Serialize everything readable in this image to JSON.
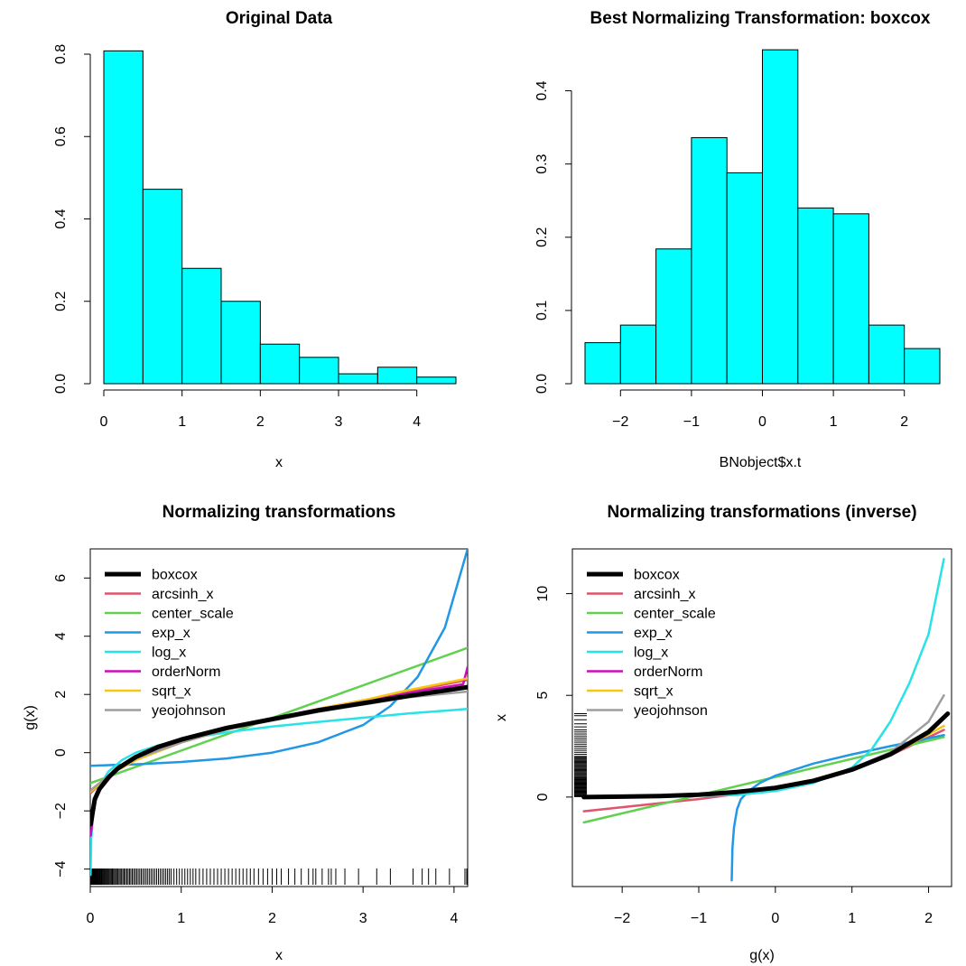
{
  "chart_data": [
    {
      "type": "histogram",
      "title": "Original Data",
      "xlabel": "x",
      "ylabel": "",
      "bar_color": "#00FFFF",
      "bins": [
        [
          0,
          0.5
        ],
        [
          0.5,
          1
        ],
        [
          1,
          1.5
        ],
        [
          1.5,
          2
        ],
        [
          2,
          2.5
        ],
        [
          2.5,
          3
        ],
        [
          3,
          3.5
        ],
        [
          3.5,
          4
        ],
        [
          4,
          4.5
        ]
      ],
      "values": [
        0.808,
        0.472,
        0.28,
        0.2,
        0.096,
        0.064,
        0.024,
        0.04,
        0.016
      ],
      "xlim": [
        0,
        4.5
      ],
      "ylim": [
        0,
        0.8
      ],
      "xticks": [
        0,
        1,
        2,
        3,
        4
      ],
      "xtick_labels": [
        "0",
        "1",
        "2",
        "3",
        "4"
      ],
      "yticks": [
        0,
        0.2,
        0.4,
        0.6,
        0.8
      ],
      "ytick_labels": [
        "0.0",
        "0.2",
        "0.4",
        "0.6",
        "0.8"
      ]
    },
    {
      "type": "histogram",
      "title": "Best Normalizing Transformation: boxcox",
      "xlabel": "BNobject$x.t",
      "ylabel": "",
      "bar_color": "#00FFFF",
      "bins": [
        [
          -2.5,
          -2
        ],
        [
          -2,
          -1.5
        ],
        [
          -1.5,
          -1
        ],
        [
          -1,
          -0.5
        ],
        [
          -0.5,
          0
        ],
        [
          0,
          0.5
        ],
        [
          0.5,
          1
        ],
        [
          1,
          1.5
        ],
        [
          1.5,
          2
        ],
        [
          2,
          2.5
        ]
      ],
      "values": [
        0.056,
        0.08,
        0.184,
        0.336,
        0.288,
        0.456,
        0.24,
        0.232,
        0.08,
        0.048
      ],
      "xlim": [
        -2.5,
        2.5
      ],
      "ylim": [
        0,
        0.45
      ],
      "xticks": [
        -2,
        -1,
        0,
        1,
        2
      ],
      "xtick_labels": [
        "−2",
        "−1",
        "0",
        "1",
        "2"
      ],
      "yticks": [
        0,
        0.1,
        0.2,
        0.3,
        0.4
      ],
      "ytick_labels": [
        "0.0",
        "0.1",
        "0.2",
        "0.3",
        "0.4"
      ]
    },
    {
      "type": "line",
      "title": "Normalizing transformations",
      "xlabel": "x",
      "ylabel": "g(x)",
      "xlim": [
        0,
        4.15
      ],
      "ylim": [
        -4.6,
        7.0
      ],
      "xticks": [
        0,
        1,
        2,
        3,
        4
      ],
      "xtick_labels": [
        "0",
        "1",
        "2",
        "3",
        "4"
      ],
      "yticks": [
        -4,
        -2,
        0,
        2,
        4,
        6
      ],
      "ytick_labels": [
        "−4",
        "−2",
        "0",
        "2",
        "4",
        "6"
      ],
      "legend": "top-left",
      "rug": "bottom",
      "series": [
        {
          "name": "boxcox",
          "color": "#000000",
          "width": 5,
          "points": [
            [
              0.005,
              -2.45
            ],
            [
              0.05,
              -1.6
            ],
            [
              0.1,
              -1.25
            ],
            [
              0.2,
              -0.85
            ],
            [
              0.3,
              -0.55
            ],
            [
              0.5,
              -0.15
            ],
            [
              0.75,
              0.2
            ],
            [
              1,
              0.45
            ],
            [
              1.5,
              0.85
            ],
            [
              2,
              1.15
            ],
            [
              2.5,
              1.45
            ],
            [
              3,
              1.7
            ],
            [
              3.5,
              1.95
            ],
            [
              4.15,
              2.25
            ]
          ]
        },
        {
          "name": "arcsinh_x",
          "color": "#DF536B",
          "width": 2.5,
          "points": [
            [
              0,
              -1.4
            ],
            [
              0.1,
              -1.1
            ],
            [
              0.3,
              -0.6
            ],
            [
              0.5,
              -0.25
            ],
            [
              1,
              0.35
            ],
            [
              1.5,
              0.8
            ],
            [
              2,
              1.15
            ],
            [
              2.5,
              1.5
            ],
            [
              3,
              1.8
            ],
            [
              3.5,
              2.1
            ],
            [
              4.15,
              2.5
            ]
          ]
        },
        {
          "name": "center_scale",
          "color": "#61D04F",
          "width": 2.5,
          "points": [
            [
              0,
              -1.05
            ],
            [
              4.15,
              3.6
            ]
          ]
        },
        {
          "name": "exp_x",
          "color": "#2297E6",
          "width": 2.5,
          "points": [
            [
              0,
              -0.45
            ],
            [
              0.5,
              -0.4
            ],
            [
              1,
              -0.32
            ],
            [
              1.5,
              -0.2
            ],
            [
              2,
              0.0
            ],
            [
              2.5,
              0.35
            ],
            [
              3,
              0.95
            ],
            [
              3.3,
              1.6
            ],
            [
              3.6,
              2.6
            ],
            [
              3.9,
              4.3
            ],
            [
              4.15,
              7.0
            ]
          ]
        },
        {
          "name": "log_x",
          "color": "#28E2E5",
          "width": 2.5,
          "points": [
            [
              0.003,
              -4.2
            ],
            [
              0.01,
              -3.0
            ],
            [
              0.03,
              -2.1
            ],
            [
              0.06,
              -1.55
            ],
            [
              0.1,
              -1.15
            ],
            [
              0.2,
              -0.65
            ],
            [
              0.35,
              -0.25
            ],
            [
              0.5,
              0.0
            ],
            [
              0.75,
              0.25
            ],
            [
              1,
              0.45
            ],
            [
              1.5,
              0.7
            ],
            [
              2,
              0.9
            ],
            [
              2.5,
              1.05
            ],
            [
              3,
              1.2
            ],
            [
              3.5,
              1.35
            ],
            [
              4.15,
              1.5
            ]
          ]
        },
        {
          "name": "orderNorm",
          "color": "#CD0BBC",
          "width": 2.5,
          "points": [
            [
              0.005,
              -2.85
            ],
            [
              0.05,
              -1.7
            ],
            [
              0.1,
              -1.3
            ],
            [
              0.3,
              -0.55
            ],
            [
              0.5,
              -0.15
            ],
            [
              1,
              0.45
            ],
            [
              1.5,
              0.85
            ],
            [
              2,
              1.15
            ],
            [
              2.5,
              1.45
            ],
            [
              3,
              1.75
            ],
            [
              3.5,
              2.05
            ],
            [
              4.1,
              2.35
            ],
            [
              4.15,
              2.95
            ]
          ]
        },
        {
          "name": "sqrt_x",
          "color": "#F5C710",
          "width": 2.5,
          "points": [
            [
              0,
              -1.35
            ],
            [
              0.1,
              -1.1
            ],
            [
              0.3,
              -0.6
            ],
            [
              0.5,
              -0.25
            ],
            [
              1,
              0.35
            ],
            [
              1.5,
              0.8
            ],
            [
              2,
              1.15
            ],
            [
              2.5,
              1.5
            ],
            [
              3,
              1.8
            ],
            [
              3.5,
              2.15
            ],
            [
              4.15,
              2.55
            ]
          ]
        },
        {
          "name": "yeojohnson",
          "color": "#9E9E9E",
          "width": 2.5,
          "points": [
            [
              0,
              -1.3
            ],
            [
              0.1,
              -1.05
            ],
            [
              0.3,
              -0.55
            ],
            [
              0.5,
              -0.2
            ],
            [
              1,
              0.35
            ],
            [
              1.5,
              0.8
            ],
            [
              2,
              1.1
            ],
            [
              2.5,
              1.4
            ],
            [
              3,
              1.65
            ],
            [
              3.5,
              1.9
            ],
            [
              4.15,
              2.1
            ]
          ]
        }
      ],
      "rug_x": [
        0.003,
        0.008,
        0.013,
        0.018,
        0.024,
        0.03,
        0.037,
        0.044,
        0.05,
        0.057,
        0.064,
        0.071,
        0.078,
        0.085,
        0.092,
        0.1,
        0.108,
        0.116,
        0.124,
        0.133,
        0.142,
        0.151,
        0.16,
        0.17,
        0.18,
        0.19,
        0.2,
        0.21,
        0.221,
        0.232,
        0.243,
        0.255,
        0.267,
        0.279,
        0.291,
        0.304,
        0.317,
        0.33,
        0.344,
        0.358,
        0.372,
        0.386,
        0.401,
        0.416,
        0.431,
        0.446,
        0.462,
        0.478,
        0.494,
        0.51,
        0.527,
        0.544,
        0.561,
        0.579,
        0.597,
        0.615,
        0.633,
        0.652,
        0.671,
        0.69,
        0.71,
        0.73,
        0.75,
        0.77,
        0.79,
        0.81,
        0.83,
        0.85,
        0.87,
        0.89,
        0.92,
        0.95,
        0.98,
        1.01,
        1.04,
        1.07,
        1.1,
        1.13,
        1.16,
        1.2,
        1.24,
        1.28,
        1.32,
        1.36,
        1.4,
        1.44,
        1.48,
        1.52,
        1.56,
        1.6,
        1.64,
        1.68,
        1.72,
        1.76,
        1.8,
        1.85,
        1.9,
        1.95,
        2.0,
        2.05,
        2.1,
        2.18,
        2.25,
        2.32,
        2.4,
        2.45,
        2.48,
        2.55,
        2.62,
        2.65,
        2.7,
        2.8,
        2.95,
        3.15,
        3.3,
        3.55,
        3.65,
        3.72,
        3.8,
        3.95,
        4.12,
        4.14
      ]
    },
    {
      "type": "line",
      "title": "Normalizing transformations (inverse)",
      "xlabel": "g(x)",
      "ylabel": "x",
      "xlim": [
        -2.65,
        2.3
      ],
      "ylim": [
        -4.4,
        12.2
      ],
      "xticks": [
        -2,
        -1,
        0,
        1,
        2
      ],
      "xtick_labels": [
        "−2",
        "−1",
        "0",
        "1",
        "2"
      ],
      "yticks": [
        0,
        5,
        10
      ],
      "ytick_labels": [
        "0",
        "5",
        "10"
      ],
      "legend": "top-left",
      "rug": "left",
      "series": [
        {
          "name": "boxcox",
          "color": "#000000",
          "width": 5,
          "points": [
            [
              -2.5,
              0.0
            ],
            [
              -2,
              0.02
            ],
            [
              -1.5,
              0.05
            ],
            [
              -1,
              0.12
            ],
            [
              -0.5,
              0.25
            ],
            [
              0,
              0.45
            ],
            [
              0.5,
              0.8
            ],
            [
              1,
              1.35
            ],
            [
              1.5,
              2.1
            ],
            [
              2,
              3.2
            ],
            [
              2.25,
              4.1
            ]
          ]
        },
        {
          "name": "arcsinh_x",
          "color": "#DF536B",
          "width": 2.5,
          "points": [
            [
              -2.5,
              -0.7
            ],
            [
              -2,
              -0.5
            ],
            [
              -1.5,
              -0.3
            ],
            [
              -1,
              -0.1
            ],
            [
              -0.5,
              0.15
            ],
            [
              0,
              0.45
            ],
            [
              0.5,
              0.85
            ],
            [
              1,
              1.4
            ],
            [
              1.5,
              2.05
            ],
            [
              2.2,
              3.3
            ]
          ]
        },
        {
          "name": "center_scale",
          "color": "#61D04F",
          "width": 2.5,
          "points": [
            [
              -2.5,
              -1.25
            ],
            [
              2.2,
              2.95
            ]
          ]
        },
        {
          "name": "exp_x",
          "color": "#2297E6",
          "width": 2.5,
          "points": [
            [
              -0.57,
              -4.1
            ],
            [
              -0.56,
              -2.5
            ],
            [
              -0.54,
              -1.5
            ],
            [
              -0.5,
              -0.6
            ],
            [
              -0.45,
              -0.1
            ],
            [
              -0.35,
              0.3
            ],
            [
              -0.2,
              0.7
            ],
            [
              0,
              1.05
            ],
            [
              0.5,
              1.65
            ],
            [
              1,
              2.1
            ],
            [
              1.5,
              2.5
            ],
            [
              2.2,
              3.05
            ]
          ]
        },
        {
          "name": "log_x",
          "color": "#28E2E5",
          "width": 2.5,
          "points": [
            [
              -2.5,
              0.0
            ],
            [
              -1.5,
              0.03
            ],
            [
              -0.5,
              0.1
            ],
            [
              0,
              0.3
            ],
            [
              0.5,
              0.7
            ],
            [
              1,
              1.45
            ],
            [
              1.25,
              2.3
            ],
            [
              1.5,
              3.7
            ],
            [
              1.75,
              5.6
            ],
            [
              2.0,
              8.0
            ],
            [
              2.2,
              11.7
            ]
          ]
        },
        {
          "name": "orderNorm",
          "color": "#CD0BBC",
          "width": 2.5,
          "points": [
            [
              -2.5,
              0.0
            ],
            [
              -1.5,
              0.05
            ],
            [
              -1,
              0.12
            ],
            [
              -0.5,
              0.28
            ],
            [
              0,
              0.5
            ],
            [
              0.5,
              0.85
            ],
            [
              1,
              1.35
            ],
            [
              1.5,
              2.1
            ],
            [
              2,
              3.2
            ],
            [
              2.2,
              3.9
            ]
          ]
        },
        {
          "name": "sqrt_x",
          "color": "#F5C710",
          "width": 2.5,
          "points": [
            [
              -2.5,
              0.0
            ],
            [
              -1.5,
              0.05
            ],
            [
              -1,
              0.12
            ],
            [
              -0.5,
              0.28
            ],
            [
              0,
              0.5
            ],
            [
              0.5,
              0.85
            ],
            [
              1,
              1.35
            ],
            [
              1.5,
              2.05
            ],
            [
              2.2,
              3.5
            ]
          ]
        },
        {
          "name": "yeojohnson",
          "color": "#9E9E9E",
          "width": 2.5,
          "points": [
            [
              -2.5,
              0.0
            ],
            [
              -1.5,
              0.05
            ],
            [
              -1,
              0.12
            ],
            [
              -0.5,
              0.27
            ],
            [
              0,
              0.48
            ],
            [
              0.5,
              0.85
            ],
            [
              1,
              1.4
            ],
            [
              1.5,
              2.2
            ],
            [
              2,
              3.7
            ],
            [
              2.2,
              5.0
            ]
          ]
        }
      ],
      "rug_y": [
        0.02,
        0.06,
        0.1,
        0.14,
        0.18,
        0.22,
        0.26,
        0.3,
        0.34,
        0.38,
        0.42,
        0.46,
        0.5,
        0.54,
        0.58,
        0.62,
        0.66,
        0.7,
        0.74,
        0.78,
        0.82,
        0.86,
        0.9,
        0.95,
        1.0,
        1.05,
        1.1,
        1.15,
        1.2,
        1.25,
        1.3,
        1.35,
        1.4,
        1.45,
        1.5,
        1.55,
        1.6,
        1.65,
        1.7,
        1.75,
        1.8,
        1.85,
        1.9,
        1.95,
        2.0,
        2.1,
        2.2,
        2.3,
        2.4,
        2.5,
        2.6,
        2.7,
        2.8,
        2.9,
        3.0,
        3.1,
        3.2,
        3.3,
        3.45,
        3.6,
        3.8,
        4.0,
        4.1
      ]
    }
  ]
}
